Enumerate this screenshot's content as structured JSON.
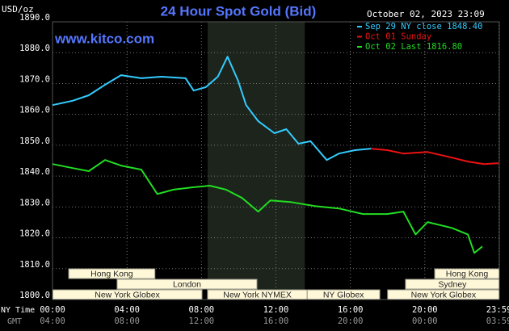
{
  "chart_data": {
    "type": "line",
    "title": "24 Hour Spot Gold (Bid)",
    "y_label": "USD/oz",
    "timestamp": "October 02, 2023 23:09",
    "watermark": "www.kitco.com",
    "background": "#000000",
    "grid": true,
    "legend_position": "top-right",
    "xlim": [
      0,
      24
    ],
    "ylim": [
      1800,
      1890
    ],
    "yticks": [
      {
        "value": 1800,
        "label": "1800.0"
      },
      {
        "value": 1810,
        "label": "1810.0"
      },
      {
        "value": 1820,
        "label": "1820.0"
      },
      {
        "value": 1830,
        "label": "1830.0"
      },
      {
        "value": 1840,
        "label": "1840.0"
      },
      {
        "value": 1850,
        "label": "1850.0"
      },
      {
        "value": 1860,
        "label": "1860.0"
      },
      {
        "value": 1870,
        "label": "1870.0"
      },
      {
        "value": 1880,
        "label": "1880.0"
      },
      {
        "value": 1890,
        "label": "1890.0"
      }
    ],
    "xticks": [
      {
        "value": 0,
        "label": "00:00"
      },
      {
        "value": 4,
        "label": "04:00"
      },
      {
        "value": 8,
        "label": "08:00"
      },
      {
        "value": 12,
        "label": "12:00"
      },
      {
        "value": 16,
        "label": "16:00"
      },
      {
        "value": 20,
        "label": "20:00"
      },
      {
        "value": 23.98,
        "label": "23:59"
      }
    ],
    "x_row_label": "NY Time",
    "gmt_row_label": "GMT",
    "gmt_labels": [
      "04:00",
      "08:00",
      "12:00",
      "16:00",
      "20:00",
      "00:00",
      "03:59"
    ],
    "shaded_range": [
      8.33,
      13.55
    ],
    "sessions": [
      [
        {
          "label": "Hong Kong",
          "start": 0.87,
          "end": 5.5
        },
        {
          "label": "Hong Kong",
          "start": 20.53,
          "end": 24
        }
      ],
      [
        {
          "label": "London",
          "start": 3.47,
          "end": 10.98
        },
        {
          "label": "Sydney",
          "start": 18.96,
          "end": 24
        }
      ],
      [
        {
          "label": "New York Globex",
          "start": 0,
          "end": 8.03
        },
        {
          "label": "New York NYMEX",
          "start": 8.33,
          "end": 13.68
        },
        {
          "label": "NY Globex",
          "start": 13.68,
          "end": 17.58
        },
        {
          "label": "New York Globex",
          "start": 18.0,
          "end": 24
        }
      ]
    ],
    "series": [
      {
        "name": "Sep 29 NY close 1848.40",
        "color": "#33ccff",
        "x": [
          0,
          1.08,
          1.95,
          2.82,
          3.68,
          4.77,
          5.85,
          7.15,
          7.58,
          8.23,
          8.88,
          9.4,
          9.97,
          10.4,
          11.05,
          11.92,
          12.56,
          13.21,
          13.86,
          14.73,
          15.38,
          16.25,
          17.11
        ],
        "values": [
          1863,
          1864.4,
          1866.2,
          1869.6,
          1872.7,
          1871.7,
          1872.2,
          1871.7,
          1867.7,
          1868.8,
          1872.2,
          1878.7,
          1870.9,
          1863,
          1857.8,
          1853.9,
          1855.2,
          1850.5,
          1851.3,
          1845.2,
          1847.3,
          1848.4,
          1848.9
        ]
      },
      {
        "name": "Oct 01 Sunday",
        "color": "#ee1111",
        "x": [
          17.11,
          17.98,
          18.85,
          20.15,
          21.45,
          22.31,
          23.18,
          23.96
        ],
        "values": [
          1848.9,
          1848.4,
          1847.3,
          1847.8,
          1846.0,
          1844.7,
          1843.9,
          1844.2
        ]
      },
      {
        "name": "Oct 02 Last 1816.80",
        "color": "#22dd22",
        "x": [
          0,
          1.08,
          1.95,
          2.82,
          3.68,
          4.77,
          5.63,
          6.5,
          7.58,
          8.45,
          9.32,
          10.18,
          11.05,
          11.7,
          12.78,
          14.08,
          15.38,
          16.68,
          17.98,
          18.85,
          19.5,
          20.15,
          21.45,
          22.31,
          22.66,
          23.09
        ],
        "values": [
          1843.9,
          1842.6,
          1841.6,
          1845.2,
          1843.4,
          1842.1,
          1834.2,
          1835.6,
          1836.4,
          1836.9,
          1835.6,
          1832.9,
          1828.5,
          1832.1,
          1831.6,
          1830.3,
          1829.5,
          1827.7,
          1827.7,
          1828.5,
          1821.1,
          1825.1,
          1823.2,
          1821.1,
          1815.1,
          1817.2
        ]
      }
    ]
  }
}
